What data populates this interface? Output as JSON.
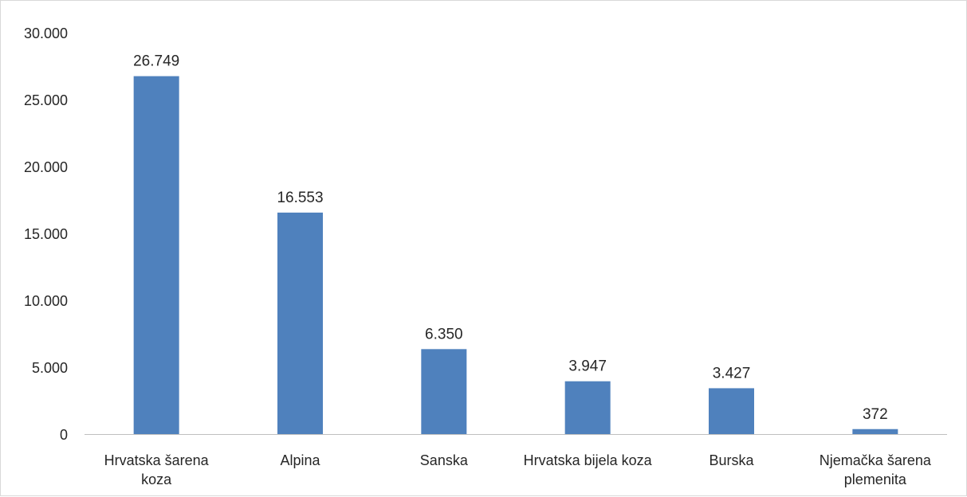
{
  "chart_data": {
    "type": "bar",
    "title": "",
    "xlabel": "",
    "ylabel": "",
    "categories": [
      [
        "Hrvatska šarena",
        "koza"
      ],
      [
        "Alpina"
      ],
      [
        "Sanska"
      ],
      [
        "Hrvatska bijela koza"
      ],
      [
        "Burska"
      ],
      [
        "Njemačka šarena",
        "plemenita"
      ]
    ],
    "values": [
      26749,
      16553,
      6350,
      3947,
      3427,
      372
    ],
    "data_labels": [
      "26.749",
      "16.553",
      "6.350",
      "3.947",
      "3.427",
      "372"
    ],
    "ylim": [
      0,
      30000
    ],
    "yticks": [
      0,
      5000,
      10000,
      15000,
      20000,
      25000,
      30000
    ],
    "ytick_labels": [
      "0",
      "5.000",
      "10.000",
      "15.000",
      "20.000",
      "25.000",
      "30.000"
    ],
    "bar_color": "#4f81bd",
    "grid": false,
    "legend": "none"
  }
}
